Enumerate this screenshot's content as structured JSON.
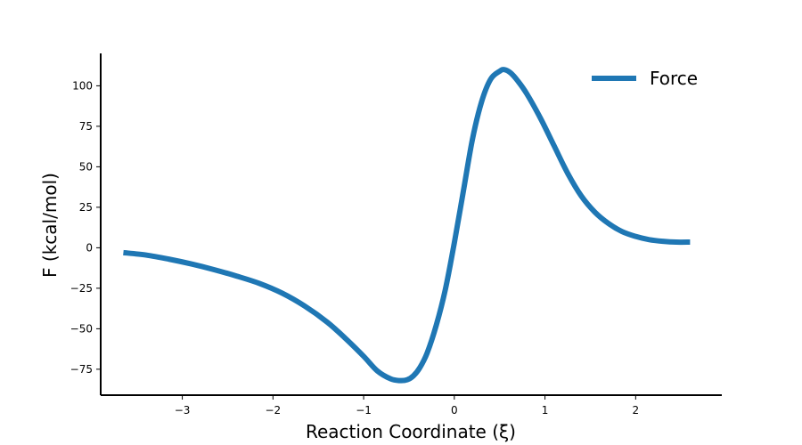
{
  "chart_data": {
    "type": "line",
    "title": "",
    "xlabel": "Reaction Coordinate (ξ)",
    "ylabel": "F (kcal/mol)",
    "xlim": [
      -3.9,
      2.95
    ],
    "ylim": [
      -91,
      120
    ],
    "grid": false,
    "legend_position": "top-right",
    "x_ticks": [
      -3,
      -2,
      -1,
      0,
      1,
      2
    ],
    "x_tick_labels": [
      "−3",
      "−2",
      "−1",
      "0",
      "1",
      "2"
    ],
    "y_ticks": [
      -75,
      -50,
      -25,
      0,
      25,
      50,
      75,
      100
    ],
    "y_tick_labels": [
      "−75",
      "−50",
      "−25",
      "0",
      "25",
      "50",
      "75",
      "100"
    ],
    "series": [
      {
        "name": "Force",
        "color": "#1f77b4",
        "x": [
          -3.65,
          -3.4,
          -3.15,
          -2.9,
          -2.65,
          -2.4,
          -2.15,
          -1.9,
          -1.65,
          -1.4,
          -1.2,
          -1.0,
          -0.85,
          -0.7,
          -0.6,
          -0.52,
          -0.45,
          -0.38,
          -0.3,
          -0.2,
          -0.1,
          0.0,
          0.1,
          0.2,
          0.3,
          0.4,
          0.5,
          0.55,
          0.62,
          0.7,
          0.8,
          0.95,
          1.1,
          1.25,
          1.4,
          1.55,
          1.7,
          1.85,
          2.0,
          2.15,
          2.3,
          2.45,
          2.6
        ],
        "y": [
          -3,
          -4.5,
          -7,
          -10,
          -13.5,
          -17.5,
          -22,
          -28,
          -36,
          -46,
          -56,
          -67,
          -76,
          -81,
          -82,
          -81.5,
          -79,
          -74,
          -65,
          -48,
          -26,
          3,
          35,
          67,
          90,
          104,
          109,
          110,
          108,
          103,
          95,
          80,
          63,
          46,
          32,
          22,
          15,
          10,
          7,
          5,
          4,
          3.5,
          3.5
        ]
      }
    ]
  }
}
